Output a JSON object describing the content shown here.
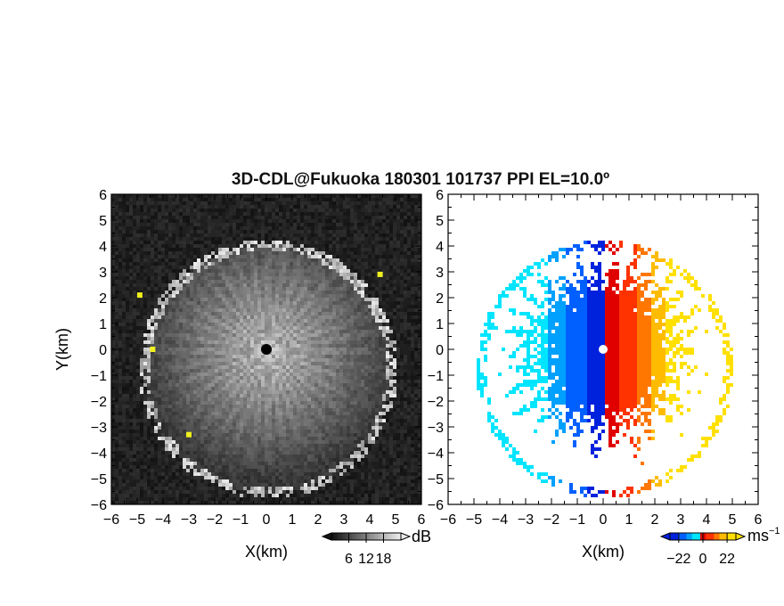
{
  "chart_data": {
    "title": "3D-CDL@Fukuoka 180301 101737 PPI EL=10.0º",
    "panels": [
      {
        "type": "heatmap",
        "quantity": "reflectivity",
        "xlabel": "X(km)",
        "ylabel": "Y(km)",
        "xlim": [
          -6,
          6
        ],
        "ylim": [
          -6,
          6
        ],
        "xticks": [
          "−6",
          "−5",
          "−4",
          "−3",
          "−2",
          "−1",
          "0",
          "1",
          "2",
          "3",
          "4",
          "5",
          "6"
        ],
        "yticks": [
          "6",
          "5",
          "4",
          "3",
          "2",
          "1",
          "0",
          "−1",
          "−2",
          "−3",
          "−4",
          "−5",
          "−6"
        ],
        "background": "#141414",
        "ring_radius_km": 4.8,
        "ring_center_km": [
          0,
          -0.7
        ],
        "clutter_points": [
          [
            4.4,
            2.9
          ],
          [
            -4.4,
            0.0
          ],
          [
            -3.0,
            -3.3
          ],
          [
            -4.9,
            2.1
          ]
        ],
        "colorbar": {
          "unit": "dB",
          "ticks": [
            "6",
            "12",
            "18"
          ],
          "range": [
            0,
            24
          ]
        }
      },
      {
        "type": "heatmap",
        "quantity": "radial velocity",
        "xlabel": "X(km)",
        "xlim": [
          -6,
          6
        ],
        "ylim": [
          -6,
          6
        ],
        "xticks": [
          "−6",
          "−5",
          "−4",
          "−3",
          "−2",
          "−1",
          "0",
          "1",
          "2",
          "3",
          "4",
          "5",
          "6"
        ],
        "yticks": [
          "6",
          "5",
          "4",
          "3",
          "2",
          "1",
          "0",
          "−1",
          "−2",
          "−3",
          "−4",
          "−5",
          "−6"
        ],
        "background": "#ffffff",
        "velocity_range": [
          -22,
          22
        ],
        "colorbar": {
          "unit": "ms",
          "unit_sup": "−1",
          "ticks": [
            "−22",
            "0",
            "22"
          ],
          "range": [
            -30,
            30
          ]
        }
      }
    ]
  },
  "colors": {
    "negative_velocity": [
      "#00e5ff",
      "#00a0ff",
      "#0060ff",
      "#0022dd"
    ],
    "positive_velocity": [
      "#e00000",
      "#ff3300",
      "#ff7700",
      "#ffbb00",
      "#ffe000"
    ]
  }
}
